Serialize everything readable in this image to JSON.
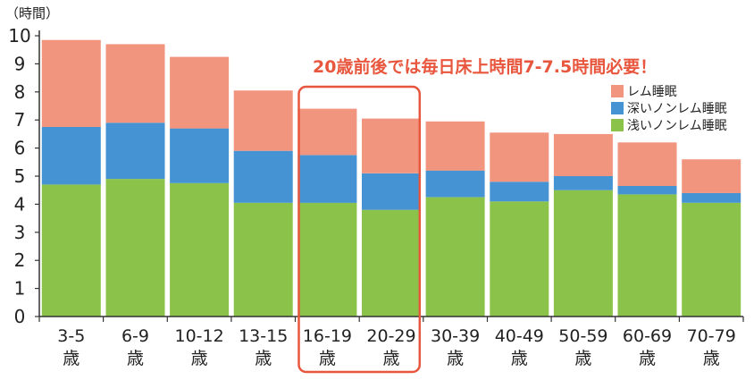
{
  "chart_data": {
    "type": "bar",
    "stacked": true,
    "unit_label": "（時間）",
    "ylim": [
      0,
      10
    ],
    "yticks": [
      "0",
      "1",
      "2",
      "3",
      "4",
      "5",
      "6",
      "7",
      "8",
      "9",
      "10"
    ],
    "grid": false,
    "categories": [
      {
        "range": "3-5",
        "suffix": "歳"
      },
      {
        "range": "6-9",
        "suffix": "歳"
      },
      {
        "range": "10-12",
        "suffix": "歳"
      },
      {
        "range": "13-15",
        "suffix": "歳"
      },
      {
        "range": "16-19",
        "suffix": "歳"
      },
      {
        "range": "20-29",
        "suffix": "歳"
      },
      {
        "range": "30-39",
        "suffix": "歳"
      },
      {
        "range": "40-49",
        "suffix": "歳"
      },
      {
        "range": "50-59",
        "suffix": "歳"
      },
      {
        "range": "60-69",
        "suffix": "歳"
      },
      {
        "range": "70-79",
        "suffix": "歳"
      }
    ],
    "series": [
      {
        "name": "浅いノンレム睡眠",
        "color": "#8bc34a",
        "values": [
          4.7,
          4.9,
          4.75,
          4.05,
          4.05,
          3.8,
          4.25,
          4.1,
          4.5,
          4.35,
          4.05
        ]
      },
      {
        "name": "深いノンレム睡眠",
        "color": "#4593d3",
        "values": [
          2.05,
          2.0,
          1.95,
          1.85,
          1.7,
          1.3,
          0.95,
          0.7,
          0.5,
          0.3,
          0.35
        ]
      },
      {
        "name": "レム睡眠",
        "color": "#f2957f",
        "values": [
          3.1,
          2.8,
          2.55,
          2.15,
          1.65,
          1.95,
          1.75,
          1.75,
          1.5,
          1.55,
          1.2
        ]
      }
    ],
    "legend": {
      "position": "right",
      "entries": [
        "レム睡眠",
        "深いノンレム睡眠",
        "浅いノンレム睡眠"
      ]
    },
    "annotation": {
      "text": "20歳前後では毎日床上時間7-7.5時間必要！",
      "color": "#e8563d",
      "highlight_categories": [
        "16-19",
        "20-29"
      ]
    }
  }
}
